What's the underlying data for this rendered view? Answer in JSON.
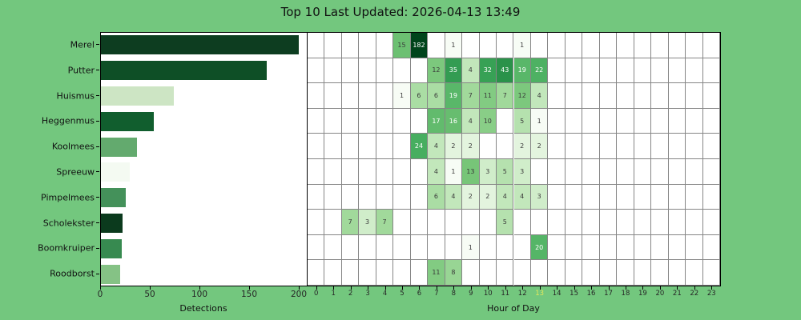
{
  "title": "Top 10 Last Updated: 2026-04-13 13:49",
  "colors": {
    "background": "#73c77e",
    "plot_background": "#ffffff",
    "frame": "#000000",
    "gridline": "#868686",
    "tick_label": "#262626",
    "highlighted_tick": "#e2e75a",
    "cell_text_dark": "#3a3a3a",
    "cell_text_light": "#ffffff",
    "greens_palette": [
      "#f7fcf5",
      "#e5f5e0",
      "#c7e9c0",
      "#a1d99b",
      "#74c476",
      "#41ab5d",
      "#238b45",
      "#006d2c",
      "#00441b"
    ]
  },
  "chart_data": [
    {
      "type": "bar",
      "orientation": "horizontal",
      "xlabel": "Detections",
      "xticks": [
        "0",
        "50",
        "100",
        "150",
        "200"
      ],
      "xtick_values": [
        0,
        50,
        100,
        150,
        200
      ],
      "xlim": [
        0,
        208
      ],
      "categories": [
        "Merel",
        "Putter",
        "Huismus",
        "Heggenmus",
        "Koolmees",
        "Spreeuw",
        "Pimpelmees",
        "Scholekster",
        "Boomkruiper",
        "Roodborst"
      ],
      "values": [
        199,
        167,
        73,
        53,
        36,
        29,
        25,
        22,
        21,
        19
      ],
      "bar_colors": [
        "#0d3d20",
        "#0e4f26",
        "#cde5c4",
        "#115e2e",
        "#63aa6e",
        "#f4faf2",
        "#44915a",
        "#0b3a1d",
        "#378a50",
        "#85c285"
      ]
    },
    {
      "type": "heatmap",
      "xlabel": "Hour of Day",
      "x": [
        0,
        1,
        2,
        3,
        4,
        5,
        6,
        7,
        8,
        9,
        10,
        11,
        12,
        13,
        14,
        15,
        16,
        17,
        18,
        19,
        20,
        21,
        22,
        23
      ],
      "highlighted_hour": 13,
      "colormap": "Greens",
      "norm": "log",
      "vmin": 1,
      "vmax": 182,
      "rows": [
        "Merel",
        "Putter",
        "Huismus",
        "Heggenmus",
        "Koolmees",
        "Spreeuw",
        "Pimpelmees",
        "Scholekster",
        "Boomkruiper",
        "Roodborst"
      ],
      "series": [
        {
          "name": "Merel",
          "cells": {
            "5": 15,
            "6": 182,
            "8": 1,
            "12": 1
          }
        },
        {
          "name": "Putter",
          "cells": {
            "7": 12,
            "8": 35,
            "9": 4,
            "10": 32,
            "11": 43,
            "12": 19,
            "13": 22
          }
        },
        {
          "name": "Huismus",
          "cells": {
            "5": 1,
            "6": 6,
            "7": 6,
            "8": 19,
            "9": 7,
            "10": 11,
            "11": 7,
            "12": 12,
            "13": 4
          }
        },
        {
          "name": "Heggenmus",
          "cells": {
            "7": 17,
            "8": 16,
            "9": 4,
            "10": 10,
            "12": 5,
            "13": 1
          }
        },
        {
          "name": "Koolmees",
          "cells": {
            "6": 24,
            "7": 4,
            "8": 2,
            "9": 2,
            "12": 2,
            "13": 2
          }
        },
        {
          "name": "Spreeuw",
          "cells": {
            "7": 4,
            "8": 1,
            "9": 13,
            "10": 3,
            "11": 5,
            "12": 3
          }
        },
        {
          "name": "Pimpelmees",
          "cells": {
            "7": 6,
            "8": 4,
            "9": 2,
            "10": 2,
            "11": 4,
            "12": 4,
            "13": 3
          }
        },
        {
          "name": "Scholekster",
          "cells": {
            "2": 7,
            "3": 3,
            "4": 7,
            "11": 5
          }
        },
        {
          "name": "Boomkruiper",
          "cells": {
            "9": 1,
            "13": 20
          }
        },
        {
          "name": "Roodborst",
          "cells": {
            "7": 11,
            "8": 8
          }
        }
      ]
    }
  ]
}
